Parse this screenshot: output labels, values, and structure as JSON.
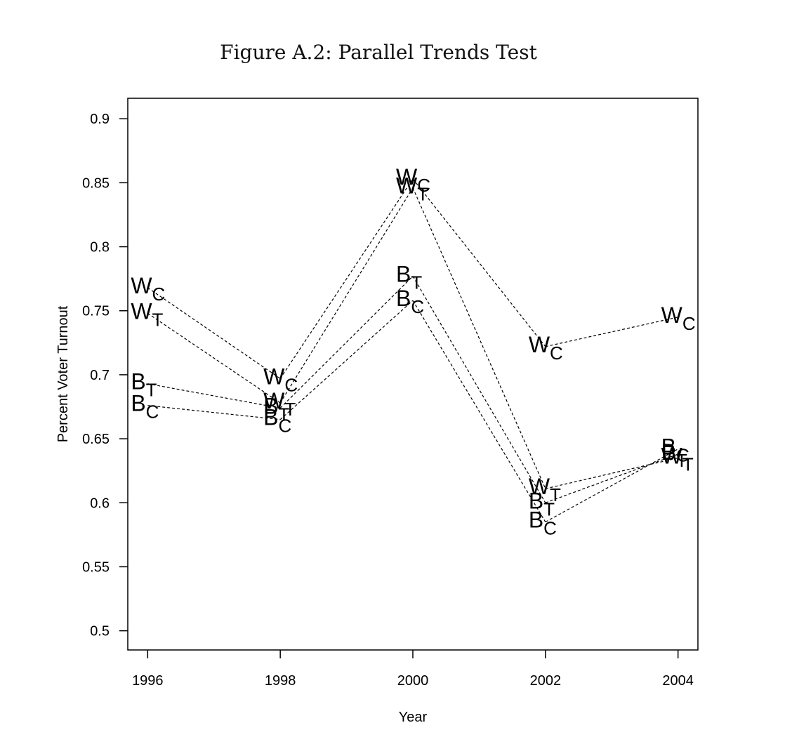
{
  "figure": {
    "caption": "Figure A.2: Parallel Trends Test"
  },
  "chart_data": {
    "type": "line",
    "title": "Figure A.2: Parallel Trends Test",
    "xlabel": "Year",
    "ylabel": "Percent Voter Turnout",
    "xlim": [
      1995.7,
      2004.3
    ],
    "ylim": [
      0.485,
      0.916
    ],
    "x_ticks": [
      1996,
      1998,
      2000,
      2002,
      2004
    ],
    "y_ticks": [
      0.5,
      0.55,
      0.6,
      0.65,
      0.7,
      0.75,
      0.8,
      0.85,
      0.9
    ],
    "y_tick_labels": [
      "0.5",
      "0.55",
      "0.6",
      "0.65",
      "0.7",
      "0.75",
      "0.8",
      "0.85",
      "0.9"
    ],
    "x_tick_labels": [
      "1996",
      "1998",
      "2000",
      "2002",
      "2004"
    ],
    "grid": false,
    "line_style": "dashed",
    "series": [
      {
        "base": "W",
        "sub": "C",
        "points": [
          {
            "x": 1996,
            "y": 0.768
          },
          {
            "x": 1998,
            "y": 0.697
          },
          {
            "x": 2000,
            "y": 0.853
          },
          {
            "x": 2002,
            "y": 0.722
          },
          {
            "x": 2004,
            "y": 0.745
          }
        ]
      },
      {
        "base": "W",
        "sub": "T",
        "points": [
          {
            "x": 1996,
            "y": 0.748
          },
          {
            "x": 1998,
            "y": 0.678
          },
          {
            "x": 2000,
            "y": 0.846
          },
          {
            "x": 2002,
            "y": 0.611
          },
          {
            "x": 2004,
            "y": 0.635
          }
        ]
      },
      {
        "base": "B",
        "sub": "T",
        "points": [
          {
            "x": 1996,
            "y": 0.693
          },
          {
            "x": 1998,
            "y": 0.674
          },
          {
            "x": 2000,
            "y": 0.777
          },
          {
            "x": 2002,
            "y": 0.6
          },
          {
            "x": 2004,
            "y": 0.638
          }
        ]
      },
      {
        "base": "B",
        "sub": "C",
        "points": [
          {
            "x": 1996,
            "y": 0.676
          },
          {
            "x": 1998,
            "y": 0.665
          },
          {
            "x": 2000,
            "y": 0.758
          },
          {
            "x": 2002,
            "y": 0.585
          },
          {
            "x": 2004,
            "y": 0.642
          }
        ]
      }
    ]
  }
}
